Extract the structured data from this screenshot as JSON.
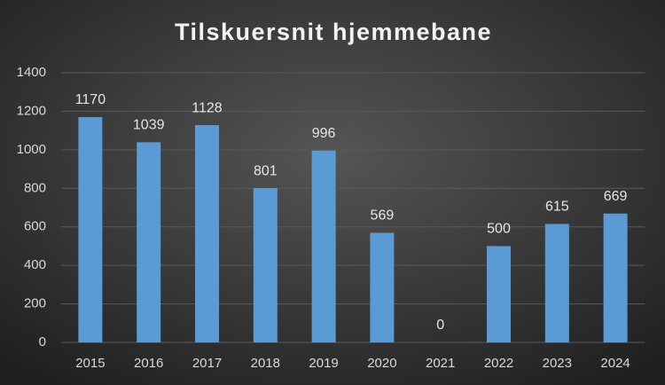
{
  "chart_data": {
    "type": "bar",
    "title": "Tilskuersnit hjemmebane",
    "categories": [
      "2015",
      "2016",
      "2017",
      "2018",
      "2019",
      "2020",
      "2021",
      "2022",
      "2023",
      "2024"
    ],
    "values": [
      1170,
      1039,
      1128,
      801,
      996,
      569,
      0,
      500,
      615,
      669
    ],
    "color": "#5b9bd5",
    "ylim": [
      0,
      1400
    ],
    "yticks": [
      0,
      200,
      400,
      600,
      800,
      1000,
      1200,
      1400
    ],
    "grid": true
  }
}
